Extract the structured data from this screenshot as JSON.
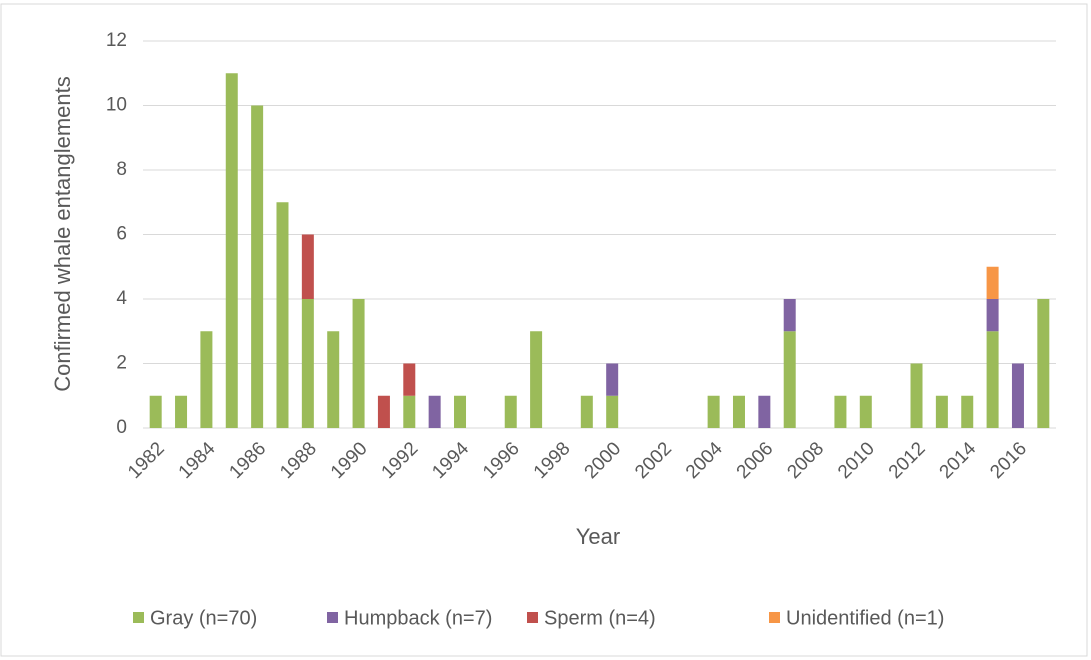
{
  "chart_data": {
    "type": "stacked_bar",
    "x_label": "Year",
    "y_label": "Confirmed whale entanglements",
    "categories": [
      "1982",
      null,
      "1984",
      null,
      "1986",
      null,
      "1988",
      null,
      "1990",
      null,
      "1992",
      null,
      "1994",
      null,
      "1996",
      null,
      "1998",
      null,
      "2000",
      null,
      "2002",
      null,
      "2004",
      null,
      "2006",
      null,
      "2008",
      null,
      "2010",
      null,
      "2012",
      null,
      "2014",
      null,
      "2016",
      null
    ],
    "series": [
      {
        "name": "Gray (n=70)",
        "color": "#9bbb59",
        "values": [
          1,
          1,
          3,
          11,
          10,
          7,
          4,
          3,
          4,
          0,
          1,
          0,
          1,
          0,
          1,
          3,
          0,
          1,
          1,
          0,
          0,
          0,
          1,
          1,
          0,
          3,
          0,
          1,
          1,
          0,
          2,
          1,
          1,
          3,
          0,
          4
        ]
      },
      {
        "name": "Humpback (n=7)",
        "color": "#8064a2",
        "values": [
          0,
          0,
          0,
          0,
          0,
          0,
          0,
          0,
          0,
          0,
          0,
          1,
          0,
          0,
          0,
          0,
          0,
          0,
          1,
          0,
          0,
          0,
          0,
          0,
          1,
          1,
          0,
          0,
          0,
          0,
          0,
          0,
          0,
          1,
          2,
          0
        ]
      },
      {
        "name": "Sperm (n=4)",
        "color": "#c0504d",
        "values": [
          0,
          0,
          0,
          0,
          0,
          0,
          2,
          0,
          0,
          1,
          1,
          0,
          0,
          0,
          0,
          0,
          0,
          0,
          0,
          0,
          0,
          0,
          0,
          0,
          0,
          0,
          0,
          0,
          0,
          0,
          0,
          0,
          0,
          0,
          0,
          0
        ]
      },
      {
        "name": "Unidentified (n=1)",
        "color": "#f79646",
        "values": [
          0,
          0,
          0,
          0,
          0,
          0,
          0,
          0,
          0,
          0,
          0,
          0,
          0,
          0,
          0,
          0,
          0,
          0,
          0,
          0,
          0,
          0,
          0,
          0,
          0,
          0,
          0,
          0,
          0,
          0,
          0,
          0,
          0,
          1,
          0,
          0
        ]
      }
    ],
    "ylim": [
      0,
      12
    ],
    "yticks": [
      0,
      2,
      4,
      6,
      8,
      10,
      12
    ],
    "grid": true,
    "legend": "bottom"
  }
}
